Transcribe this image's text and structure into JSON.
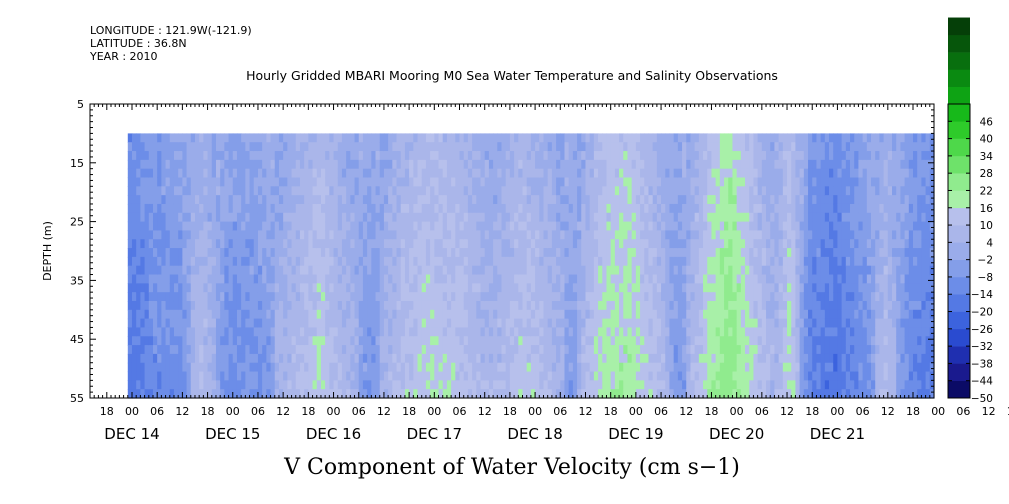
{
  "header": {
    "longitude": "LONGITUDE : 121.9W(-121.9)",
    "latitude": "LATITUDE : 36.8N",
    "year": "YEAR : 2010"
  },
  "chart_data": {
    "type": "heatmap",
    "title": "Hourly Gridded MBARI Mooring M0 Sea Water Temperature and Salinity Observations",
    "variable_label": "V Component of Water Velocity (cm s−1)",
    "ylabel": "DEPTH (m)",
    "y_axis": {
      "range": [
        5,
        55
      ],
      "inverted": true,
      "ticks": [
        5,
        15,
        25,
        35,
        45,
        55
      ],
      "labels": [
        "5",
        "15",
        "25",
        "35",
        "45",
        "55"
      ]
    },
    "data_depth_range": [
      10,
      55
    ],
    "x_axis": {
      "start": "2010-12-13T14:00",
      "end": "2010-12-21T23:00",
      "data_start": "2010-12-13T23:00",
      "data_end": "2010-12-21T23:00",
      "hour_labels": [
        "18",
        "00",
        "06",
        "12",
        "18",
        "00",
        "06",
        "12",
        "18",
        "00",
        "06",
        "12",
        "18",
        "00",
        "06",
        "12",
        "18",
        "00",
        "06",
        "12",
        "18",
        "00",
        "06",
        "12",
        "18",
        "00",
        "06",
        "12",
        "18",
        "00",
        "06",
        "12",
        "18",
        "00",
        "06",
        "12",
        "18",
        "00",
        "06",
        "12",
        "18",
        "00",
        "06",
        "12",
        "18",
        "00",
        "06",
        "12"
      ],
      "hour_label_start": "2010-12-13T18:00",
      "hour_label_step_hours": 6,
      "date_labels": [
        "DEC 14",
        "DEC 15",
        "DEC 16",
        "DEC 17",
        "DEC 18",
        "DEC 19",
        "DEC 20",
        "DEC 21"
      ],
      "date_label_dates": [
        "2010-12-14",
        "2010-12-15",
        "2010-12-16",
        "2010-12-17",
        "2010-12-18",
        "2010-12-19",
        "2010-12-20",
        "2010-12-21"
      ]
    },
    "colorbar": {
      "min": -50,
      "max": 52,
      "step": 6,
      "labels": [
        "46",
        "40",
        "34",
        "28",
        "22",
        "16",
        "10",
        "4",
        "−2",
        "−8",
        "−14",
        "−20",
        "−26",
        "−32",
        "−38",
        "−44",
        "−50"
      ],
      "label_values": [
        46,
        40,
        34,
        28,
        22,
        16,
        10,
        4,
        -2,
        -8,
        -14,
        -20,
        -26,
        -32,
        -38,
        -44,
        -50
      ],
      "colors": [
        "#0b0b66",
        "#1a1a8e",
        "#1f2fb0",
        "#2a4bd0",
        "#3c63de",
        "#5479e4",
        "#6c8de8",
        "#849ee9",
        "#9aacea",
        "#aab6ea",
        "#b7c0ec",
        "#a8f0a8",
        "#90eb8e",
        "#6ee26a",
        "#4ed84a",
        "#2ecb2a",
        "#17b91a",
        "#0ea314",
        "#0a8a11",
        "#086f0e",
        "#06560b",
        "#053f08"
      ]
    },
    "series_description_time_profile": [
      {
        "day_offset": 0.0,
        "v": -14
      },
      {
        "day_offset": 0.25,
        "v": -8
      },
      {
        "day_offset": 0.5,
        "v": -6
      },
      {
        "day_offset": 0.7,
        "v": 6
      },
      {
        "day_offset": 1.0,
        "v": -6
      },
      {
        "day_offset": 1.3,
        "v": -4
      },
      {
        "day_offset": 1.6,
        "v": 4
      },
      {
        "day_offset": 1.9,
        "v": 12
      },
      {
        "day_offset": 2.1,
        "v": 4
      },
      {
        "day_offset": 2.4,
        "v": -4
      },
      {
        "day_offset": 2.7,
        "v": 8
      },
      {
        "day_offset": 3.0,
        "v": 12
      },
      {
        "day_offset": 3.3,
        "v": 8
      },
      {
        "day_offset": 3.6,
        "v": 2
      },
      {
        "day_offset": 3.9,
        "v": 10
      },
      {
        "day_offset": 4.1,
        "v": 6
      },
      {
        "day_offset": 4.4,
        "v": -2
      },
      {
        "day_offset": 4.7,
        "v": 14
      },
      {
        "day_offset": 4.95,
        "v": 16
      },
      {
        "day_offset": 5.2,
        "v": 8
      },
      {
        "day_offset": 5.45,
        "v": -4
      },
      {
        "day_offset": 5.7,
        "v": 12
      },
      {
        "day_offset": 5.95,
        "v": 22
      },
      {
        "day_offset": 6.2,
        "v": 10
      },
      {
        "day_offset": 6.4,
        "v": 2
      },
      {
        "day_offset": 6.55,
        "v": 14
      },
      {
        "day_offset": 6.75,
        "v": -10
      },
      {
        "day_offset": 7.0,
        "v": -14
      },
      {
        "day_offset": 7.3,
        "v": -6
      },
      {
        "day_offset": 7.5,
        "v": 6
      },
      {
        "day_offset": 7.75,
        "v": -8
      },
      {
        "day_offset": 8.0,
        "v": -12
      }
    ]
  }
}
